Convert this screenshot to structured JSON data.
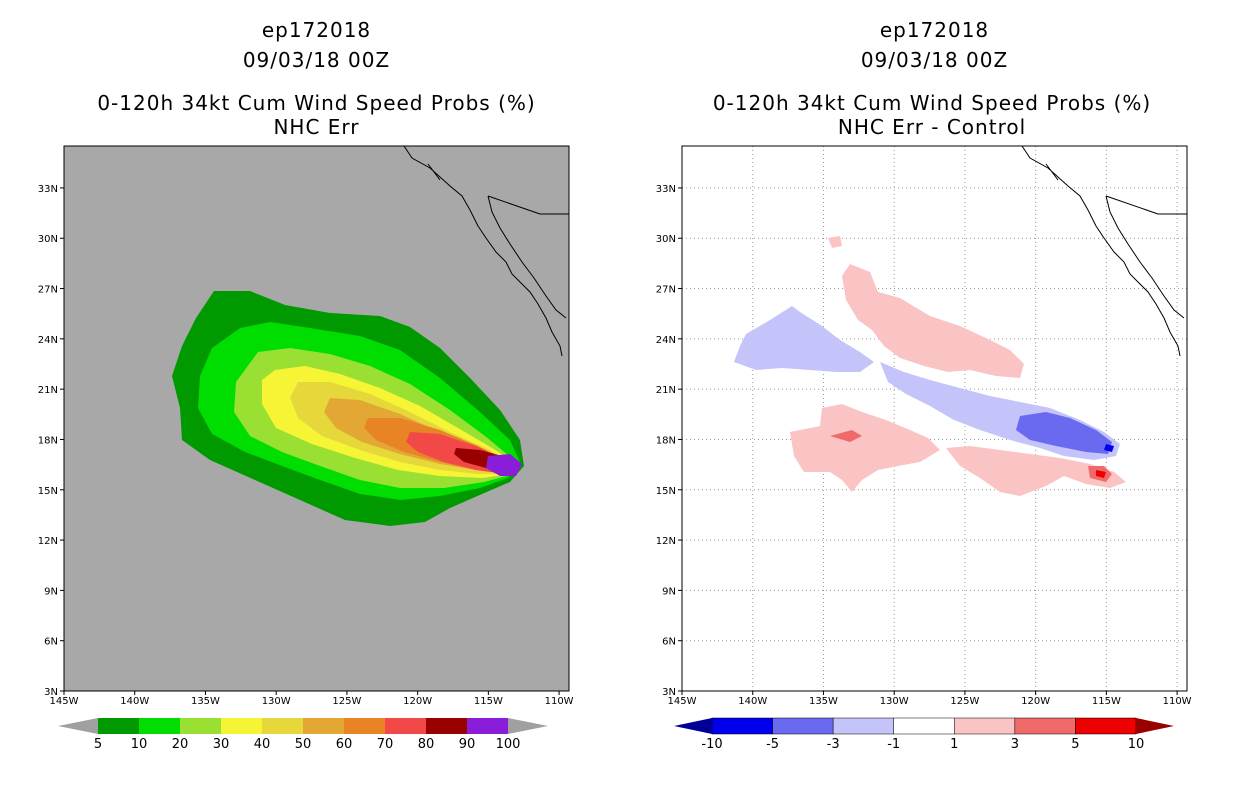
{
  "left_panel": {
    "title_line1": "ep172018",
    "title_line2": "09/03/18 00Z",
    "title_line3": "0-120h 34kt Cum Wind Speed Probs (%)",
    "title_line4": "NHC Err",
    "background_color": "#a8a8a8",
    "colorbar_labels": [
      "5",
      "10",
      "20",
      "30",
      "40",
      "50",
      "60",
      "70",
      "80",
      "90",
      "100"
    ],
    "colorbar_colors": [
      "#a0a0a0",
      "#009900",
      "#00dd00",
      "#99e033",
      "#f5f536",
      "#e6d83a",
      "#e2a833",
      "#e88426",
      "#f24848",
      "#990000",
      "#8a1dd8",
      "#a0a0a0"
    ]
  },
  "right_panel": {
    "title_line1": "ep172018",
    "title_line2": "09/03/18 00Z",
    "title_line3": "0-120h 34kt Cum Wind Speed Probs (%)",
    "title_line4": "NHC Err - Control",
    "background_color": "#ffffff",
    "colorbar_labels": [
      "-10",
      "-5",
      "-3",
      "-1",
      "1",
      "3",
      "5",
      "10"
    ],
    "colorbar_colors": [
      "#000099",
      "#0000ee",
      "#6a6af0",
      "#c4c4fa",
      "#ffffff",
      "#fac4c4",
      "#f06a6a",
      "#ee0000",
      "#990000"
    ]
  },
  "axes": {
    "lat_labels": [
      "3N",
      "6N",
      "9N",
      "12N",
      "15N",
      "18N",
      "21N",
      "24N",
      "27N",
      "30N",
      "33N"
    ],
    "lon_labels": [
      "145W",
      "140W",
      "135W",
      "130W",
      "125W",
      "120W",
      "115W",
      "110W"
    ],
    "lat_values": [
      3,
      6,
      9,
      12,
      15,
      18,
      21,
      24,
      27,
      30,
      33
    ],
    "lon_values": [
      -145,
      -140,
      -135,
      -130,
      -125,
      -120,
      -115,
      -110
    ],
    "lat_range": [
      3,
      35.5
    ],
    "lon_range": [
      -145,
      -109.3
    ]
  }
}
